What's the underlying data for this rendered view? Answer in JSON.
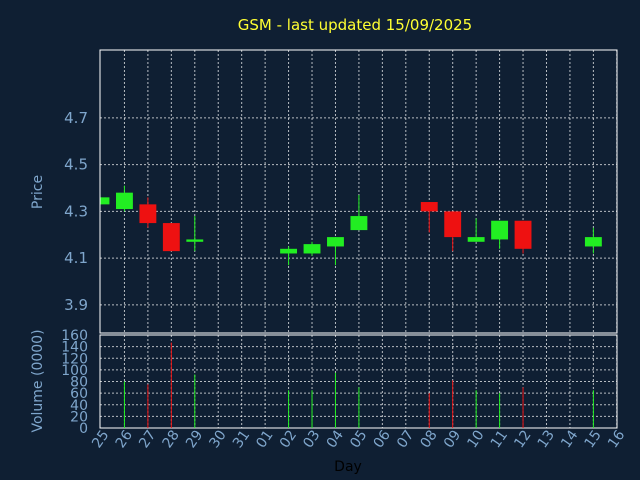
{
  "chart_data": [
    {
      "type": "candlestick",
      "title": "GSM - last updated 15/09/2025",
      "ylabel": "Price",
      "ylim": [
        3.78,
        4.99
      ],
      "yticks": [
        "3.9",
        "4.1",
        "4.3",
        "4.5",
        "4.7"
      ],
      "grid": true,
      "colors": {
        "up": "#22ee22",
        "down": "#ee1111",
        "background": "#0f1f33",
        "grid": "#ffffff"
      },
      "x": [
        "25",
        "26",
        "27",
        "28",
        "29",
        "30",
        "31",
        "01",
        "02",
        "03",
        "04",
        "05",
        "06",
        "07",
        "08",
        "09",
        "10",
        "11",
        "12",
        "13",
        "14",
        "15",
        "16"
      ],
      "candles": [
        {
          "day": "25",
          "open": 4.33,
          "close": 4.36,
          "high": 4.36,
          "low": 4.33
        },
        {
          "day": "26",
          "open": 4.31,
          "close": 4.38,
          "high": 4.41,
          "low": 4.3
        },
        {
          "day": "27",
          "open": 4.33,
          "close": 4.25,
          "high": 4.36,
          "low": 4.23
        },
        {
          "day": "28",
          "open": 4.25,
          "close": 4.13,
          "high": 4.25,
          "low": 4.13
        },
        {
          "day": "29",
          "open": 4.17,
          "close": 4.18,
          "high": 4.28,
          "low": 4.13
        },
        {
          "day": "02",
          "open": 4.12,
          "close": 4.14,
          "high": 4.15,
          "low": 4.07
        },
        {
          "day": "03",
          "open": 4.12,
          "close": 4.16,
          "high": 4.17,
          "low": 4.11
        },
        {
          "day": "04",
          "open": 4.15,
          "close": 4.19,
          "high": 4.19,
          "low": 4.07
        },
        {
          "day": "05",
          "open": 4.22,
          "close": 4.28,
          "high": 4.37,
          "low": 4.22
        },
        {
          "day": "08",
          "open": 4.34,
          "close": 4.3,
          "high": 4.34,
          "low": 4.21
        },
        {
          "day": "09",
          "open": 4.3,
          "close": 4.19,
          "high": 4.3,
          "low": 4.13
        },
        {
          "day": "10",
          "open": 4.17,
          "close": 4.19,
          "high": 4.27,
          "low": 4.17
        },
        {
          "day": "11",
          "open": 4.18,
          "close": 4.26,
          "high": 4.26,
          "low": 4.14
        },
        {
          "day": "12",
          "open": 4.26,
          "close": 4.14,
          "high": 4.26,
          "low": 4.12
        },
        {
          "day": "15",
          "open": 4.15,
          "close": 4.19,
          "high": 4.23,
          "low": 4.12
        }
      ]
    },
    {
      "type": "bar",
      "ylabel": "Volume (0000)",
      "xlabel": "Day",
      "ylim": [
        0,
        160
      ],
      "yticks": [
        "0",
        "20",
        "40",
        "60",
        "80",
        "100",
        "120",
        "140",
        "160"
      ],
      "x": [
        "25",
        "26",
        "27",
        "28",
        "29",
        "30",
        "31",
        "01",
        "02",
        "03",
        "04",
        "05",
        "06",
        "07",
        "08",
        "09",
        "10",
        "11",
        "12",
        "13",
        "14",
        "15",
        "16"
      ],
      "bars": [
        {
          "day": "26",
          "value": 80,
          "direction": "up"
        },
        {
          "day": "27",
          "value": 75,
          "direction": "down"
        },
        {
          "day": "28",
          "value": 147,
          "direction": "down"
        },
        {
          "day": "29",
          "value": 92,
          "direction": "up"
        },
        {
          "day": "02",
          "value": 65,
          "direction": "up"
        },
        {
          "day": "03",
          "value": 65,
          "direction": "up"
        },
        {
          "day": "04",
          "value": 95,
          "direction": "up"
        },
        {
          "day": "05",
          "value": 70,
          "direction": "up"
        },
        {
          "day": "08",
          "value": 60,
          "direction": "down"
        },
        {
          "day": "09",
          "value": 82,
          "direction": "down"
        },
        {
          "day": "10",
          "value": 65,
          "direction": "up"
        },
        {
          "day": "11",
          "value": 60,
          "direction": "up"
        },
        {
          "day": "12",
          "value": 70,
          "direction": "down"
        },
        {
          "day": "15",
          "value": 65,
          "direction": "up"
        }
      ]
    }
  ]
}
